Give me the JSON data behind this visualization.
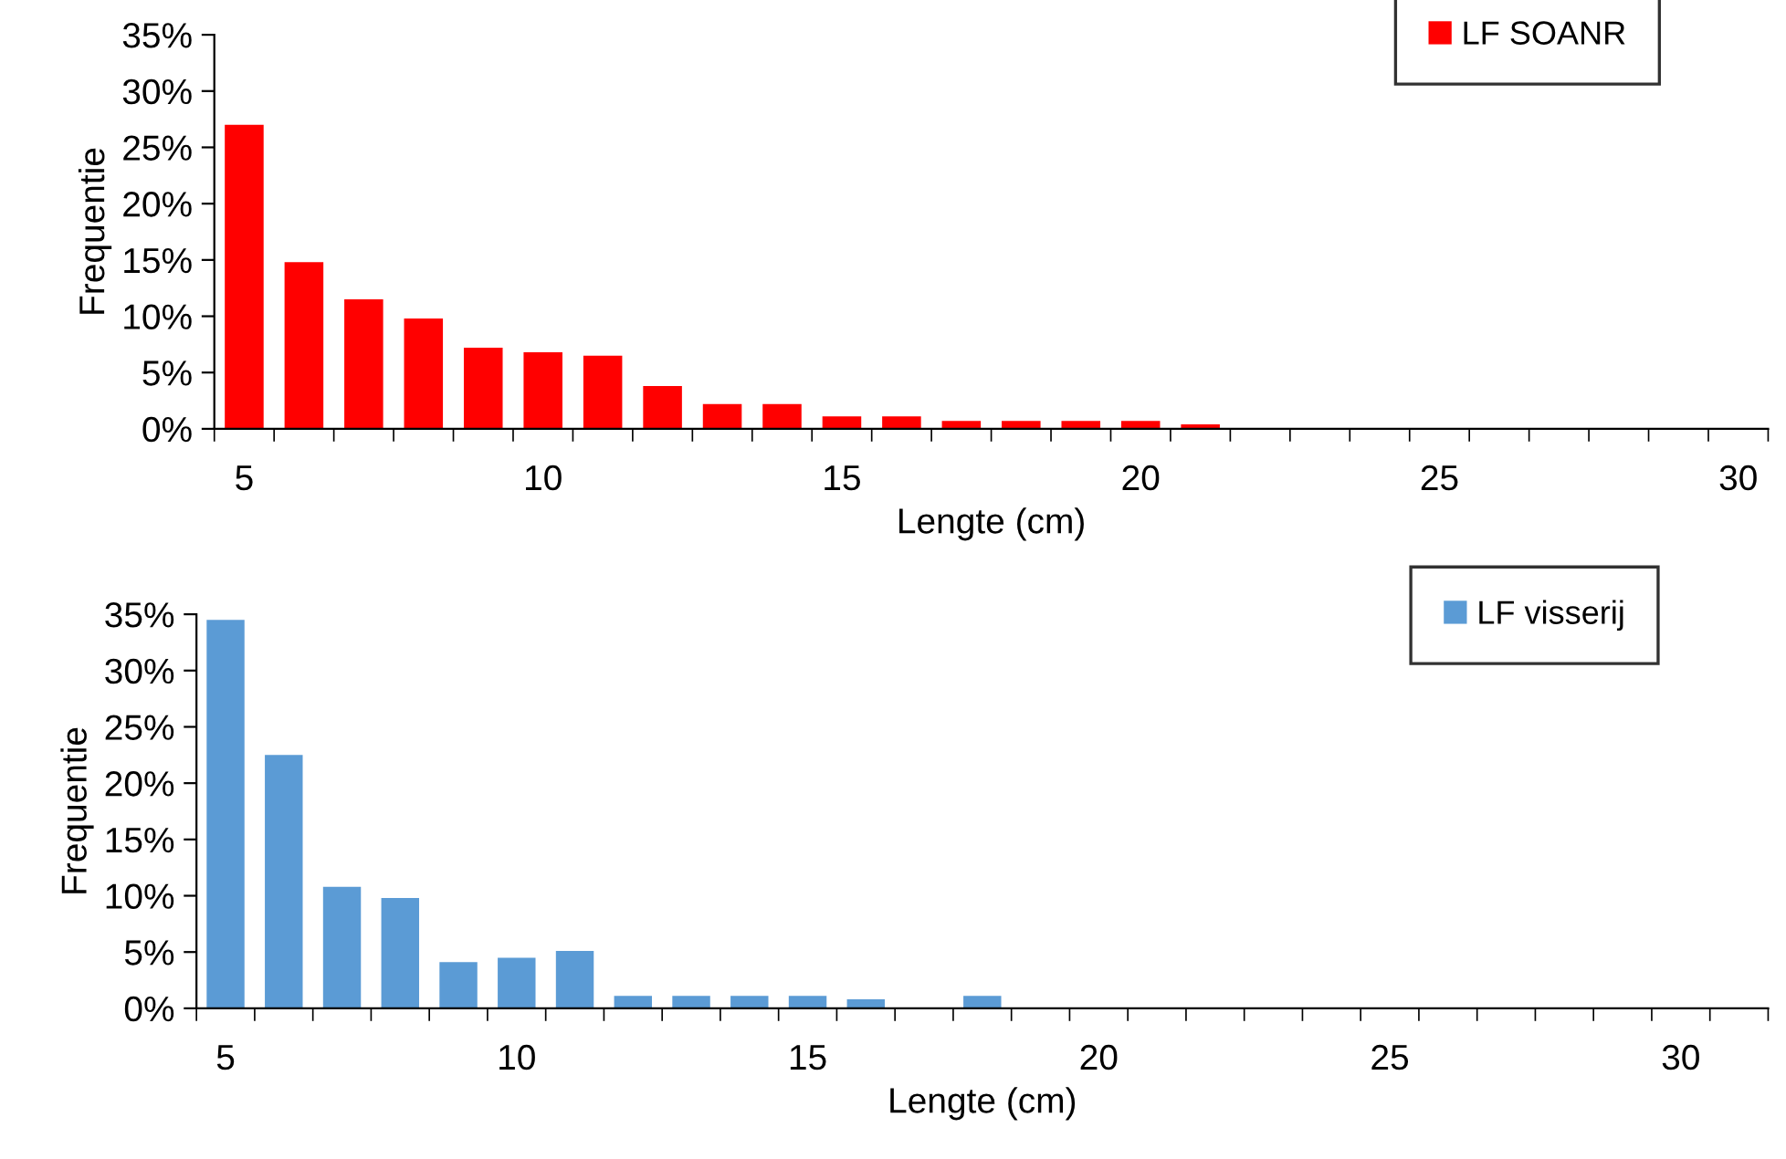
{
  "chart_data": [
    {
      "type": "bar",
      "xlabel": "Lengte (cm)",
      "ylabel": "Frequentie",
      "categories": [
        "5",
        null,
        null,
        null,
        null,
        "10",
        null,
        null,
        null,
        null,
        "15",
        null,
        null,
        null,
        null,
        "20",
        null,
        null,
        null,
        null,
        "25",
        null,
        null,
        null,
        null,
        "30"
      ],
      "series": [
        {
          "name": "LF SOANR",
          "color": "#ff0000",
          "values": [
            27,
            14.8,
            11.5,
            9.8,
            7.2,
            6.8,
            6.5,
            3.8,
            2.2,
            2.2,
            1.1,
            1.1,
            0.7,
            0.7,
            0.7,
            0.7,
            0.4,
            0,
            0,
            0,
            0,
            0,
            0,
            0,
            0,
            0
          ]
        }
      ],
      "ylim": [
        0,
        35
      ],
      "yticks": [
        {
          "value": 0,
          "label": "0%"
        },
        {
          "value": 5,
          "label": "5%"
        },
        {
          "value": 10,
          "label": "10%"
        },
        {
          "value": 15,
          "label": "15%"
        },
        {
          "value": 20,
          "label": "20%"
        },
        {
          "value": 25,
          "label": "25%"
        },
        {
          "value": 30,
          "label": "30%"
        },
        {
          "value": 35,
          "label": "35%"
        }
      ],
      "grid": false,
      "legend": "top right"
    },
    {
      "type": "bar",
      "xlabel": "Lengte (cm)",
      "ylabel": "Frequentie",
      "categories": [
        "5",
        null,
        null,
        null,
        null,
        "10",
        null,
        null,
        null,
        null,
        "15",
        null,
        null,
        null,
        null,
        "20",
        null,
        null,
        null,
        null,
        "25",
        null,
        null,
        null,
        null,
        "30",
        null
      ],
      "series": [
        {
          "name": "LF visserij",
          "color": "#5b9bd5",
          "values": [
            34.5,
            22.5,
            10.8,
            9.8,
            4.1,
            4.5,
            5.1,
            1.1,
            1.1,
            1.1,
            1.1,
            0.8,
            0,
            1.1,
            0,
            0,
            0,
            0,
            0,
            0,
            0,
            0,
            0,
            0,
            0,
            0,
            0
          ]
        }
      ],
      "ylim": [
        0,
        35
      ],
      "yticks": [
        {
          "value": 0,
          "label": "0%"
        },
        {
          "value": 5,
          "label": "5%"
        },
        {
          "value": 10,
          "label": "10%"
        },
        {
          "value": 15,
          "label": "15%"
        },
        {
          "value": 20,
          "label": "20%"
        },
        {
          "value": 25,
          "label": "25%"
        },
        {
          "value": 30,
          "label": "30%"
        },
        {
          "value": 35,
          "label": "35%"
        }
      ],
      "grid": false,
      "legend": "top right"
    }
  ]
}
